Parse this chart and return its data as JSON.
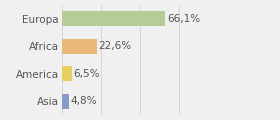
{
  "categories": [
    "Europa",
    "Africa",
    "America",
    "Asia"
  ],
  "values": [
    66.1,
    22.6,
    6.5,
    4.8
  ],
  "labels": [
    "66,1%",
    "22,6%",
    "6,5%",
    "4,8%"
  ],
  "colors": [
    "#b5cc96",
    "#e8b87a",
    "#e8d060",
    "#8898c8"
  ],
  "background_color": "#f0f0f0",
  "xlim": [
    0,
    100
  ],
  "bar_height": 0.55,
  "label_fontsize": 7.5,
  "tick_fontsize": 7.5,
  "grid_ticks": [
    0,
    25,
    50,
    75,
    100
  ]
}
